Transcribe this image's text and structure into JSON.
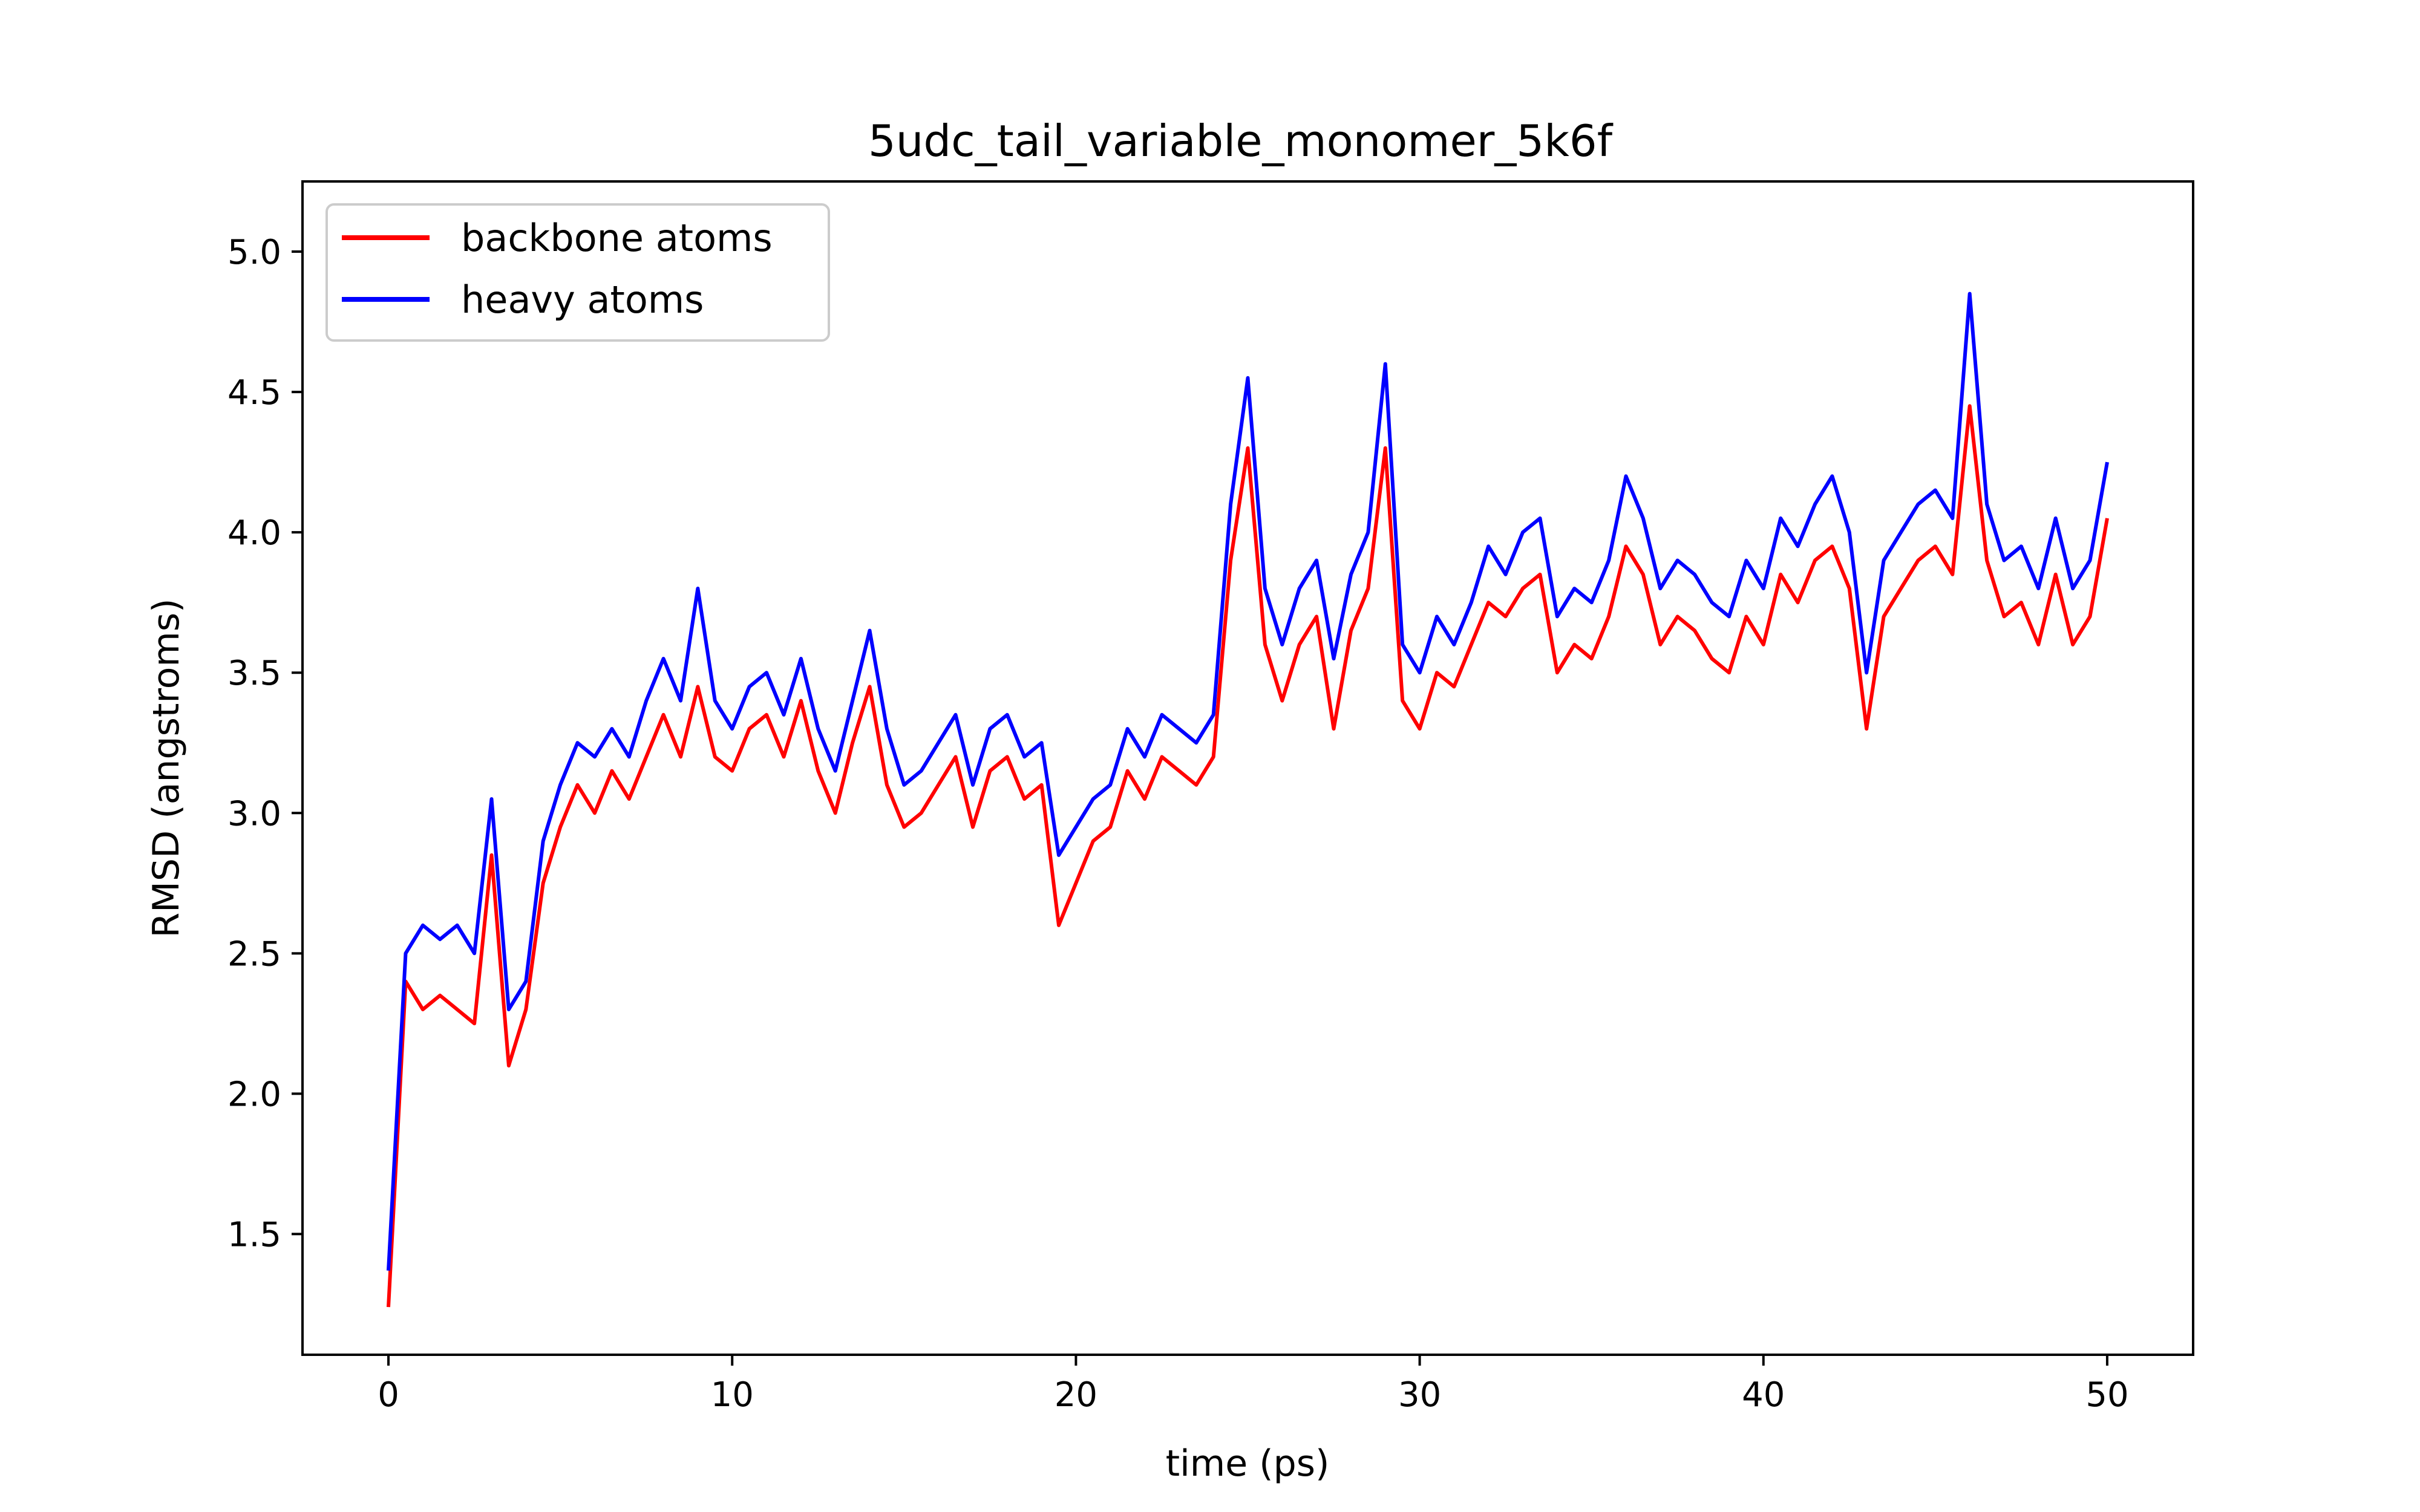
{
  "chart_data": {
    "type": "line",
    "title": "5udc_tail_variable_monomer_5k6f",
    "xlabel": "time (ps)",
    "ylabel": "RMSD (angstroms)",
    "xlim": [
      -2.5,
      52.5
    ],
    "ylim": [
      1.07,
      5.25
    ],
    "xticks": [
      0,
      10,
      20,
      30,
      40,
      50
    ],
    "yticks": [
      1.5,
      2.0,
      2.5,
      3.0,
      3.5,
      4.0,
      4.5,
      5.0
    ],
    "xtick_labels": [
      "0",
      "10",
      "20",
      "30",
      "40",
      "50"
    ],
    "ytick_labels": [
      "1.5",
      "2.0",
      "2.5",
      "3.0",
      "3.5",
      "4.0",
      "4.5",
      "5.0"
    ],
    "grid": false,
    "legend_position": "upper-left",
    "x": [
      0,
      0.5,
      1,
      1.5,
      2,
      2.5,
      3,
      3.5,
      4,
      4.5,
      5,
      5.5,
      6,
      6.5,
      7,
      7.5,
      8,
      8.5,
      9,
      9.5,
      10,
      10.5,
      11,
      11.5,
      12,
      12.5,
      13,
      13.5,
      14,
      14.5,
      15,
      15.5,
      16,
      16.5,
      17,
      17.5,
      18,
      18.5,
      19,
      19.5,
      20,
      20.5,
      21,
      21.5,
      22,
      22.5,
      23,
      23.5,
      24,
      24.5,
      25,
      25.5,
      26,
      26.5,
      27,
      27.5,
      28,
      28.5,
      29,
      29.5,
      30,
      30.5,
      31,
      31.5,
      32,
      32.5,
      33,
      33.5,
      34,
      34.5,
      35,
      35.5,
      36,
      36.5,
      37,
      37.5,
      38,
      38.5,
      39,
      39.5,
      40,
      40.5,
      41,
      41.5,
      42,
      42.5,
      43,
      43.5,
      44,
      44.5,
      45,
      45.5,
      46,
      46.5,
      47,
      47.5,
      48,
      48.5,
      49,
      49.5,
      50
    ],
    "series": [
      {
        "name": "backbone atoms",
        "color": "#ff0000",
        "values": [
          1.24,
          2.4,
          2.3,
          2.35,
          2.3,
          2.25,
          2.85,
          2.1,
          2.3,
          2.75,
          2.95,
          3.1,
          3.0,
          3.15,
          3.05,
          3.2,
          3.35,
          3.2,
          3.45,
          3.2,
          3.15,
          3.3,
          3.35,
          3.2,
          3.4,
          3.15,
          3.0,
          3.25,
          3.45,
          3.1,
          2.95,
          3.0,
          3.1,
          3.2,
          2.95,
          3.15,
          3.2,
          3.05,
          3.1,
          2.6,
          2.75,
          2.9,
          2.95,
          3.15,
          3.05,
          3.2,
          3.15,
          3.1,
          3.2,
          3.9,
          4.3,
          3.6,
          3.4,
          3.6,
          3.7,
          3.3,
          3.65,
          3.8,
          4.3,
          3.4,
          3.3,
          3.5,
          3.45,
          3.6,
          3.75,
          3.7,
          3.8,
          3.85,
          3.5,
          3.6,
          3.55,
          3.7,
          3.95,
          3.85,
          3.6,
          3.7,
          3.65,
          3.55,
          3.5,
          3.7,
          3.6,
          3.85,
          3.75,
          3.9,
          3.95,
          3.8,
          3.3,
          3.7,
          3.8,
          3.9,
          3.95,
          3.85,
          4.45,
          3.9,
          3.7,
          3.75,
          3.6,
          3.85,
          3.6,
          3.7,
          4.05
        ]
      },
      {
        "name": "heavy atoms",
        "color": "#0000ff",
        "values": [
          1.37,
          2.5,
          2.6,
          2.55,
          2.6,
          2.5,
          3.05,
          2.3,
          2.4,
          2.9,
          3.1,
          3.25,
          3.2,
          3.3,
          3.2,
          3.4,
          3.55,
          3.4,
          3.8,
          3.4,
          3.3,
          3.45,
          3.5,
          3.35,
          3.55,
          3.3,
          3.15,
          3.4,
          3.65,
          3.3,
          3.1,
          3.15,
          3.25,
          3.35,
          3.1,
          3.3,
          3.35,
          3.2,
          3.25,
          2.85,
          2.95,
          3.05,
          3.1,
          3.3,
          3.2,
          3.35,
          3.3,
          3.25,
          3.35,
          4.1,
          4.55,
          3.8,
          3.6,
          3.8,
          3.9,
          3.55,
          3.85,
          4.0,
          4.6,
          3.6,
          3.5,
          3.7,
          3.6,
          3.75,
          3.95,
          3.85,
          4.0,
          4.05,
          3.7,
          3.8,
          3.75,
          3.9,
          4.2,
          4.05,
          3.8,
          3.9,
          3.85,
          3.75,
          3.7,
          3.9,
          3.8,
          4.05,
          3.95,
          4.1,
          4.2,
          4.0,
          3.5,
          3.9,
          4.0,
          4.1,
          4.15,
          4.05,
          4.85,
          4.1,
          3.9,
          3.95,
          3.8,
          4.05,
          3.8,
          3.9,
          4.25
        ]
      }
    ]
  }
}
